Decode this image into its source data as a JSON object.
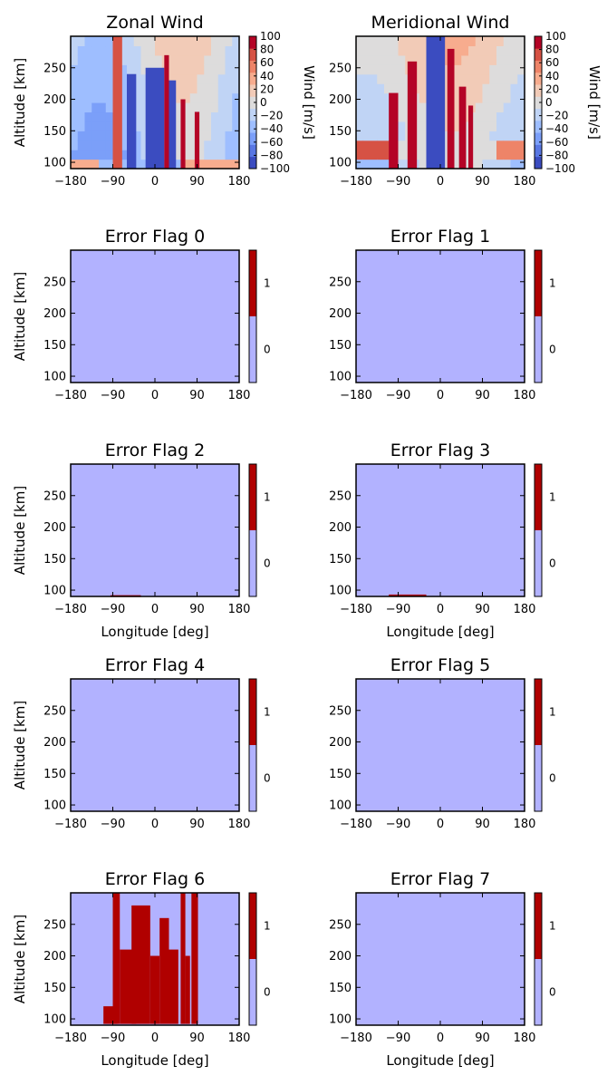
{
  "colors": {
    "flag_zero": "#b2b2ff",
    "flag_one": "#b00000",
    "wind_scale": [
      "#3b4cc0",
      "#5977e3",
      "#7b9ff9",
      "#9ebeff",
      "#c0d4f5",
      "#dddcdc",
      "#f2cbb7",
      "#f7ac8e",
      "#ee8468",
      "#d65244",
      "#b40426"
    ]
  },
  "figure": {
    "xticks": [
      "−180",
      "−90",
      "0",
      "90",
      "180"
    ],
    "yticks": [
      "250",
      "200",
      "150",
      "100"
    ],
    "ylabel": "Altitude [km]",
    "xlabel": "Longitude [deg]",
    "wind_cbar_label": "Wind [m/s]",
    "wind_cbar_ticks": [
      "100",
      "80",
      "60",
      "40",
      "20",
      "0",
      "−20",
      "−40",
      "−60",
      "−80",
      "−100"
    ],
    "flag_cbar_ticks": [
      "1",
      "0"
    ]
  },
  "chart_data": [
    {
      "type": "heatmap",
      "title": "Zonal Wind",
      "variable": "zonal",
      "xlim": [
        -180,
        180
      ],
      "ylim": [
        90,
        300
      ],
      "clim": [
        -100,
        100
      ],
      "ylabel": "Altitude [km]",
      "colorbar_label": "Wind [m/s]",
      "features": [
        {
          "kind": "band",
          "x0": -90,
          "x1": -70,
          "y0": 90,
          "y1": 300,
          "value": 80
        },
        {
          "kind": "band",
          "x0": -60,
          "x1": -40,
          "y0": 90,
          "y1": 240,
          "value": -100
        },
        {
          "kind": "band",
          "x0": -20,
          "x1": 20,
          "y0": 90,
          "y1": 250,
          "value": -100
        },
        {
          "kind": "band",
          "x0": 20,
          "x1": 30,
          "y0": 90,
          "y1": 270,
          "value": 100
        },
        {
          "kind": "band",
          "x0": 30,
          "x1": 45,
          "y0": 90,
          "y1": 230,
          "value": -100
        },
        {
          "kind": "band",
          "x0": 55,
          "x1": 65,
          "y0": 90,
          "y1": 200,
          "value": 100
        },
        {
          "kind": "band",
          "x0": 85,
          "x1": 95,
          "y0": 90,
          "y1": 180,
          "value": 100
        }
      ]
    },
    {
      "type": "heatmap",
      "title": "Meridional Wind",
      "variable": "meridional",
      "xlim": [
        -180,
        180
      ],
      "ylim": [
        90,
        300
      ],
      "clim": [
        -100,
        100
      ],
      "colorbar_label": "Wind [m/s]",
      "features": [
        {
          "kind": "band",
          "x0": -110,
          "x1": -90,
          "y0": 90,
          "y1": 210,
          "value": 100
        },
        {
          "kind": "band",
          "x0": -70,
          "x1": -50,
          "y0": 90,
          "y1": 260,
          "value": 100
        },
        {
          "kind": "band",
          "x0": -30,
          "x1": 10,
          "y0": 90,
          "y1": 300,
          "value": -100
        },
        {
          "kind": "band",
          "x0": 15,
          "x1": 30,
          "y0": 90,
          "y1": 280,
          "value": 100
        },
        {
          "kind": "band",
          "x0": 40,
          "x1": 55,
          "y0": 90,
          "y1": 220,
          "value": 100
        },
        {
          "kind": "band",
          "x0": 60,
          "x1": 70,
          "y0": 90,
          "y1": 190,
          "value": 100
        }
      ]
    },
    {
      "type": "heatmap",
      "title": "Error Flag 0",
      "variable": "flag",
      "xlim": [
        -180,
        180
      ],
      "ylim": [
        90,
        300
      ],
      "clim": [
        0,
        1
      ],
      "ylabel": "Altitude [km]",
      "flag_regions": []
    },
    {
      "type": "heatmap",
      "title": "Error Flag 1",
      "variable": "flag",
      "xlim": [
        -180,
        180
      ],
      "ylim": [
        90,
        300
      ],
      "clim": [
        0,
        1
      ],
      "flag_regions": []
    },
    {
      "type": "heatmap",
      "title": "Error Flag 2",
      "variable": "flag",
      "xlim": [
        -180,
        180
      ],
      "ylim": [
        90,
        300
      ],
      "clim": [
        0,
        1
      ],
      "ylabel": "Altitude [km]",
      "xlabel": "Longitude [deg]",
      "flag_regions": [
        {
          "x0": -95,
          "x1": -30,
          "y0": 90,
          "y1": 92
        }
      ]
    },
    {
      "type": "heatmap",
      "title": "Error Flag 3",
      "variable": "flag",
      "xlim": [
        -180,
        180
      ],
      "ylim": [
        90,
        300
      ],
      "clim": [
        0,
        1
      ],
      "xlabel": "Longitude [deg]",
      "flag_regions": [
        {
          "x0": -110,
          "x1": -30,
          "y0": 90,
          "y1": 93
        }
      ]
    },
    {
      "type": "heatmap",
      "title": "Error Flag 4",
      "variable": "flag",
      "xlim": [
        -180,
        180
      ],
      "ylim": [
        90,
        300
      ],
      "clim": [
        0,
        1
      ],
      "ylabel": "Altitude [km]",
      "flag_regions": []
    },
    {
      "type": "heatmap",
      "title": "Error Flag 5",
      "variable": "flag",
      "xlim": [
        -180,
        180
      ],
      "ylim": [
        90,
        300
      ],
      "clim": [
        0,
        1
      ],
      "flag_regions": []
    },
    {
      "type": "heatmap",
      "title": "Error Flag 6",
      "variable": "flag",
      "xlim": [
        -180,
        180
      ],
      "ylim": [
        90,
        300
      ],
      "clim": [
        0,
        1
      ],
      "ylabel": "Altitude [km]",
      "xlabel": "Longitude [deg]",
      "flag_regions": [
        {
          "x0": -110,
          "x1": -80,
          "y0": 92,
          "y1": 120
        },
        {
          "x0": -90,
          "x1": -75,
          "y0": 92,
          "y1": 300
        },
        {
          "x0": -75,
          "x1": -40,
          "y0": 92,
          "y1": 210
        },
        {
          "x0": -50,
          "x1": -10,
          "y0": 92,
          "y1": 280
        },
        {
          "x0": -10,
          "x1": 10,
          "y0": 92,
          "y1": 200
        },
        {
          "x0": 10,
          "x1": 30,
          "y0": 92,
          "y1": 260
        },
        {
          "x0": 30,
          "x1": 50,
          "y0": 92,
          "y1": 210
        },
        {
          "x0": 55,
          "x1": 65,
          "y0": 92,
          "y1": 300
        },
        {
          "x0": 65,
          "x1": 75,
          "y0": 92,
          "y1": 200
        },
        {
          "x0": 78,
          "x1": 92,
          "y0": 92,
          "y1": 300
        }
      ]
    },
    {
      "type": "heatmap",
      "title": "Error Flag 7",
      "variable": "flag",
      "xlim": [
        -180,
        180
      ],
      "ylim": [
        90,
        300
      ],
      "clim": [
        0,
        1
      ],
      "xlabel": "Longitude [deg]",
      "flag_regions": []
    }
  ]
}
